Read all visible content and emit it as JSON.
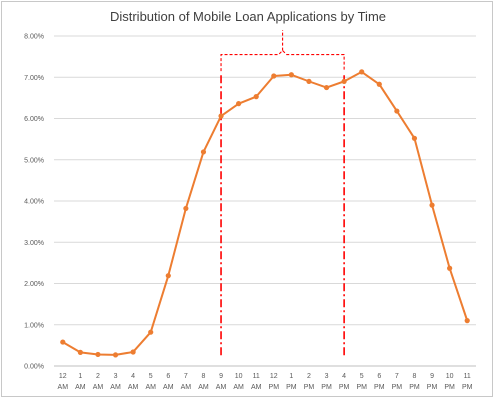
{
  "chart_data": {
    "type": "line",
    "title": "Distribution of Mobile Loan Applications by Time",
    "xlabel": "",
    "ylabel": "",
    "ylim": [
      0,
      0.08
    ],
    "grid": true,
    "legend": "none",
    "y_tick_labels": [
      "0.00%",
      "1.00%",
      "2.00%",
      "3.00%",
      "4.00%",
      "5.00%",
      "6.00%",
      "7.00%",
      "8.00%"
    ],
    "categories": [
      {
        "hour": "12",
        "period": "AM"
      },
      {
        "hour": "1",
        "period": "AM"
      },
      {
        "hour": "2",
        "period": "AM"
      },
      {
        "hour": "3",
        "period": "AM"
      },
      {
        "hour": "4",
        "period": "AM"
      },
      {
        "hour": "5",
        "period": "AM"
      },
      {
        "hour": "6",
        "period": "AM"
      },
      {
        "hour": "7",
        "period": "AM"
      },
      {
        "hour": "8",
        "period": "AM"
      },
      {
        "hour": "9",
        "period": "AM"
      },
      {
        "hour": "10",
        "period": "AM"
      },
      {
        "hour": "11",
        "period": "AM"
      },
      {
        "hour": "12",
        "period": "PM"
      },
      {
        "hour": "1",
        "period": "PM"
      },
      {
        "hour": "2",
        "period": "PM"
      },
      {
        "hour": "3",
        "period": "PM"
      },
      {
        "hour": "4",
        "period": "PM"
      },
      {
        "hour": "5",
        "period": "PM"
      },
      {
        "hour": "6",
        "period": "PM"
      },
      {
        "hour": "7",
        "period": "PM"
      },
      {
        "hour": "8",
        "period": "PM"
      },
      {
        "hour": "9",
        "period": "PM"
      },
      {
        "hour": "10",
        "period": "PM"
      },
      {
        "hour": "11",
        "period": "PM"
      }
    ],
    "series": [
      {
        "values": [
          0.0058,
          0.0033,
          0.0028,
          0.0027,
          0.0034,
          0.0082,
          0.0219,
          0.0382,
          0.0519,
          0.0606,
          0.0636,
          0.0653,
          0.0703,
          0.0706,
          0.069,
          0.0675,
          0.069,
          0.0713,
          0.0683,
          0.0618,
          0.0552,
          0.039,
          0.0237,
          0.011
        ],
        "color": "#ED7D31"
      }
    ],
    "annotations": [
      {
        "type": "bracket",
        "from_category": 9,
        "to_category": 16,
        "color": "#FF0000",
        "style": "dashed"
      },
      {
        "type": "vertical-line",
        "category": 9,
        "color": "#FF0000",
        "style": "dash-dot"
      },
      {
        "type": "vertical-line",
        "category": 16,
        "color": "#FF0000",
        "style": "dash-dot"
      }
    ]
  }
}
